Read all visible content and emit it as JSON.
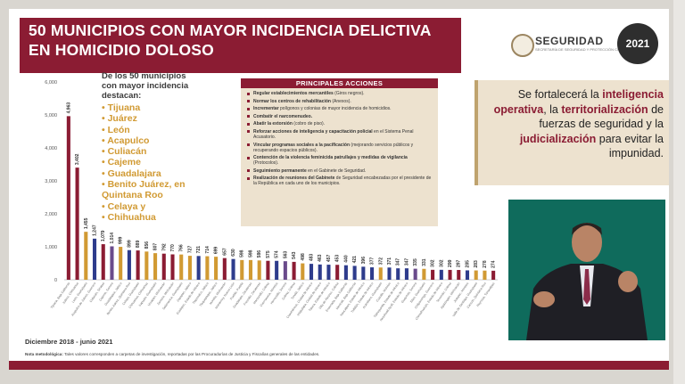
{
  "header": {
    "title_line1": "50 MUNICIPIOS CON MAYOR INCIDENCIA DELICTIVA",
    "title_line2": "EN HOMICIDIO DOLOSO",
    "logo_text": "SEGURIDAD",
    "logo_subtext": "SECRETARÍA DE SEGURIDAD Y PROTECCIÓN CIUDADANA",
    "logo_year": "2021"
  },
  "highlight_list": {
    "heading": "De los 50 municipios con mayor incidencia destacan:",
    "items": [
      "Tijuana",
      "Juárez",
      "León",
      "Acapulco",
      "Culiacán",
      "Cajeme",
      "Guadalajara",
      "Benito Juárez, en Quintana Roo",
      "Celaya y",
      "Chihuahua"
    ]
  },
  "acciones": {
    "heading": "PRINCIPALES ACCIONES",
    "items": [
      {
        "bold": "Regular establecimientos mercantiles",
        "rest": " (Giros negros)."
      },
      {
        "bold": "Normar los centros de rehabilitación",
        "rest": " (Anexos)."
      },
      {
        "bold": "Incrementar",
        "rest": " polígonos y colonias de mayor incidencia de homicidios."
      },
      {
        "bold": "Combatir el narcomenudeo.",
        "rest": ""
      },
      {
        "bold": "Abatir la extorsión",
        "rest": " (cobro de piso)."
      },
      {
        "bold": "Reforzar acciones de inteligencia y capacitación policial",
        "rest": " en el Sistema Penal Acusatorio."
      },
      {
        "bold": "Vincular programas sociales a la pacificación",
        "rest": " (mejorando servicios públicos y recuperando espacios públicos)."
      },
      {
        "bold": "Contención de la violencia feminicida patrullajes y medidas de vigilancia",
        "rest": " (Protocolos)."
      },
      {
        "bold": "Seguimiento permanente",
        "rest": " en el Gabinete de Seguridad."
      },
      {
        "bold": "Realización de reuniones del Gabinete",
        "rest": " de Seguridad encabezadas por el presidente de la República en cada uno de los municipios."
      }
    ]
  },
  "frase": {
    "p1": "Se fortalecerá la ",
    "b1": "inteligencia operativa",
    "p2": ", la ",
    "b2": "territorialización",
    "p3": " de fuerzas de seguridad y la ",
    "b3": "judicialización",
    "p4": " para evitar la impunidad."
  },
  "footer": {
    "period": "Diciembre 2018 - junio 2021",
    "note_label": "Nota metodológica:",
    "note_text": " Tales valores corresponden a carpetas de investigación, reportadas por las Procuradurías de Justicia y Fiscalías generales de las entidades."
  },
  "colors": {
    "title_bg": "#8b1c33",
    "accent_gold": "#d19a33",
    "panel_bg": "#ede2cf",
    "video_bg": "#0f6b5c"
  },
  "chart_data": {
    "type": "bar",
    "title": "",
    "xlabel": "",
    "ylabel": "",
    "ylim": [
      0,
      6000
    ],
    "yticks": [
      0,
      1000,
      2000,
      3000,
      4000,
      5000,
      6000
    ],
    "ytick_labels": [
      "0",
      "1,000",
      "2,000",
      "3,000",
      "4,000",
      "5,000",
      "6,000"
    ],
    "grid": false,
    "legend": "none",
    "categories": [
      "Tijuana, Baja California",
      "Juárez, Chihuahua",
      "León, Guanajuato",
      "Acapulco de Juárez, Guerrero",
      "Culiacán, Sinaloa",
      "Cajeme, Sonora",
      "Guadalajara, Jalisco",
      "Benito Juárez, Quintana Roo",
      "Celaya, Guanajuato",
      "Chihuahua, Chihuahua",
      "Irapuato, Guanajuato",
      "Uruapan, Michoacán",
      "Zamora, Michoacán",
      "Salamanca, Guanajuato",
      "Zapopan, Jalisco",
      "Ecatepec, Estado de México",
      "Tlajomulco, Jalisco",
      "Tlaquepaque, Jalisco",
      "Morelia, Michoacán",
      "Monterrey, Nuevo León",
      "Puebla, Puebla",
      "Guadalupe, Zacatecas",
      "Fresnillo, Zacatecas",
      "Manzanillo, Colima",
      "Cuernavaca, Morelos",
      "Hermosillo, Sonora",
      "Colima, Colima",
      "Tonalá, Jalisco",
      "Cuauhtémoc, Ciudad de México",
      "Iztapalapa, Ciudad de México",
      "Toluca, Estado de México",
      "Villa de Álvarez, Colima",
      "Ensenada, Baja California",
      "Mexicali, Baja California",
      "Naucalpan, Estado de México",
      "Tultitlán, Estado de México",
      "Acámbaro, Guanajuato",
      "Cuautla, Morelos",
      "Tlalnepantla, Estado de México",
      "Nezahualcóyotl, Estado de México",
      "Guaymas, Sonora",
      "Silao, Guanajuato",
      "Chilpancingo, Guerrero",
      "Chimalhuacán, Estado de México",
      "Tecomán, Colima",
      "Apatzingán, Michoacán",
      "Jiutepec, Morelos",
      "Valle de Santiago, Guanajuato",
      "Cancún, Quintana Roo",
      "Reynosa, Tamaulipas"
    ],
    "values": [
      4963,
      3402,
      1455,
      1247,
      1079,
      1014,
      999,
      899,
      889,
      856,
      807,
      792,
      770,
      766,
      727,
      721,
      714,
      699,
      657,
      630,
      598,
      598,
      586,
      575,
      574,
      563,
      543,
      498,
      483,
      463,
      457,
      453,
      440,
      421,
      396,
      377,
      372,
      371,
      347,
      347,
      335,
      331,
      302,
      302,
      299,
      297,
      285,
      283,
      278,
      274
    ],
    "value_labels": [
      "4,963",
      "3,402",
      "1,455",
      "1,247",
      "1,079",
      "1,014",
      "999",
      "899",
      "889",
      "856",
      "807",
      "792",
      "770",
      "766",
      "727",
      "721",
      "714",
      "699",
      "657",
      "630",
      "598",
      "598",
      "586",
      "575",
      "574",
      "563",
      "543",
      "498",
      "483",
      "463",
      "457",
      "453",
      "440",
      "421",
      "396",
      "377",
      "372",
      "371",
      "347",
      "347",
      "335",
      "331",
      "302",
      "302",
      "299",
      "297",
      "285",
      "283",
      "278",
      "274"
    ],
    "bar_colors": [
      "#8b1c33",
      "#8b1c33",
      "#d19a33",
      "#2e3c8c",
      "#8b1c33",
      "#6a4b8b",
      "#d19a33",
      "#2e3c8c",
      "#8b1c33",
      "#d19a33",
      "#d19a33",
      "#8b1c33",
      "#8b1c33",
      "#d19a33",
      "#d19a33",
      "#2e3c8c",
      "#d19a33",
      "#d19a33",
      "#8b1c33",
      "#2e3c8c",
      "#d19a33",
      "#d19a33",
      "#d19a33",
      "#8b1c33",
      "#2e3c8c",
      "#6a4b8b",
      "#8b1c33",
      "#d19a33",
      "#2e3c8c",
      "#2e3c8c",
      "#2e3c8c",
      "#8b1c33",
      "#2e3c8c",
      "#2e3c8c",
      "#2e3c8c",
      "#2e3c8c",
      "#d19a33",
      "#2e3c8c",
      "#2e3c8c",
      "#2e3c8c",
      "#6a4b8b",
      "#d19a33",
      "#8b1c33",
      "#2e3c8c",
      "#8b1c33",
      "#8b1c33",
      "#2e3c8c",
      "#d19a33",
      "#d19a33",
      "#8b1c33"
    ]
  }
}
